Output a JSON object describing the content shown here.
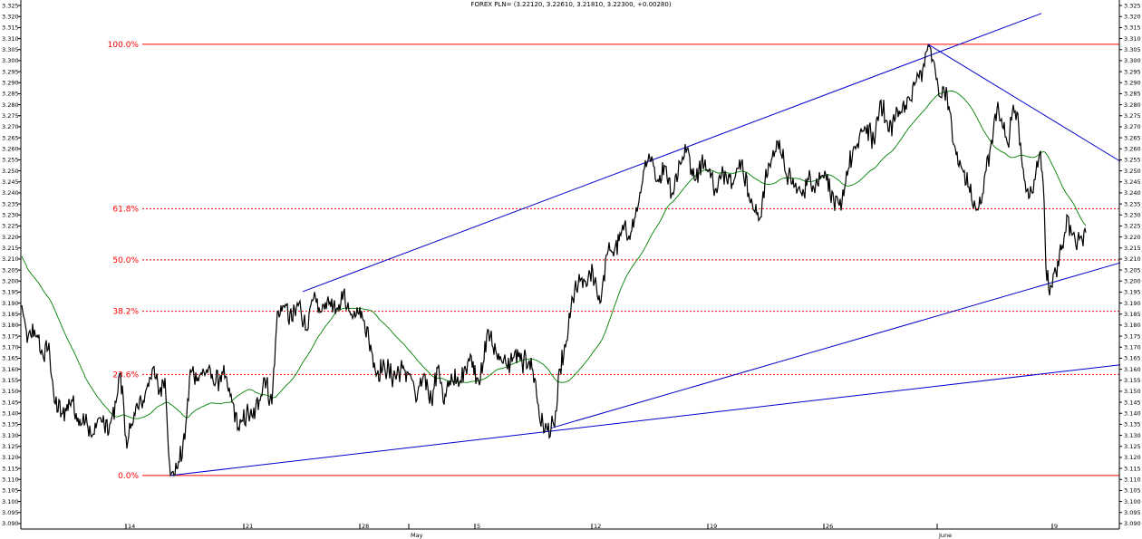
{
  "chart_data": {
    "type": "line",
    "title": "FOREX PLN= (3.22120, 3.22610, 3.21810, 3.22300, +0.00280)",
    "ylim": [
      3.0875,
      3.3275
    ],
    "y_ticks": [
      "3.090",
      "3.095",
      "3.100",
      "3.105",
      "3.110",
      "3.115",
      "3.120",
      "3.125",
      "3.130",
      "3.135",
      "3.140",
      "3.145",
      "3.150",
      "3.155",
      "3.160",
      "3.165",
      "3.170",
      "3.175",
      "3.180",
      "3.185",
      "3.190",
      "3.195",
      "3.200",
      "3.205",
      "3.210",
      "3.215",
      "3.220",
      "3.225",
      "3.230",
      "3.235",
      "3.240",
      "3.245",
      "3.250",
      "3.255",
      "3.260",
      "3.265",
      "3.270",
      "3.275",
      "3.280",
      "3.285",
      "3.290",
      "3.295",
      "3.300",
      "3.305",
      "3.310",
      "3.315",
      "3.320",
      "3.325"
    ],
    "x_ticks": [
      {
        "label": "14",
        "bar": 115
      },
      {
        "label": "21",
        "bar": 245
      },
      {
        "label": "28",
        "bar": 373
      },
      {
        "label": "May",
        "bar": 427
      },
      {
        "label": "5",
        "bar": 500
      },
      {
        "label": "12",
        "bar": 629
      },
      {
        "label": "19",
        "bar": 757
      },
      {
        "label": "26",
        "bar": 885
      },
      {
        "label": "June",
        "bar": 1010
      },
      {
        "label": "9",
        "bar": 1137
      }
    ],
    "xlim": [
      0,
      1210
    ],
    "fib_levels": [
      {
        "label": "100.0%",
        "value": 3.3074,
        "dashed": false
      },
      {
        "label": "61.8%",
        "value": 3.2328,
        "dashed": true
      },
      {
        "label": "50.0%",
        "value": 3.2096,
        "dashed": true
      },
      {
        "label": "38.2%",
        "value": 3.1863,
        "dashed": true
      },
      {
        "label": "23.6%",
        "value": 3.1576,
        "dashed": true
      },
      {
        "label": "0.0%",
        "value": 3.1118,
        "dashed": false
      }
    ],
    "trendlines": [
      {
        "name": "upper-channel",
        "from": [
          310,
          3.1952
        ],
        "to": [
          1125,
          3.3214
        ]
      },
      {
        "name": "resistance",
        "from": [
          1000,
          3.3074
        ],
        "to": [
          1212,
          3.2543
        ]
      },
      {
        "name": "support-mid",
        "from": [
          584,
          3.1333
        ],
        "to": [
          1212,
          3.2083
        ]
      },
      {
        "name": "support-low",
        "from": [
          164,
          3.1118
        ],
        "to": [
          1212,
          3.162
        ]
      }
    ],
    "price_anchors": [
      [
        0,
        3.189
      ],
      [
        6,
        3.172
      ],
      [
        14,
        3.178
      ],
      [
        24,
        3.165
      ],
      [
        30,
        3.172
      ],
      [
        36,
        3.145
      ],
      [
        45,
        3.14
      ],
      [
        55,
        3.146
      ],
      [
        62,
        3.138
      ],
      [
        70,
        3.136
      ],
      [
        78,
        3.13
      ],
      [
        86,
        3.138
      ],
      [
        96,
        3.131
      ],
      [
        104,
        3.145
      ],
      [
        108,
        3.158
      ],
      [
        112,
        3.147
      ],
      [
        116,
        3.124
      ],
      [
        124,
        3.14
      ],
      [
        134,
        3.146
      ],
      [
        144,
        3.16
      ],
      [
        152,
        3.15
      ],
      [
        158,
        3.156
      ],
      [
        164,
        3.112
      ],
      [
        172,
        3.115
      ],
      [
        180,
        3.128
      ],
      [
        186,
        3.16
      ],
      [
        194,
        3.156
      ],
      [
        204,
        3.16
      ],
      [
        214,
        3.154
      ],
      [
        222,
        3.158
      ],
      [
        232,
        3.145
      ],
      [
        240,
        3.132
      ],
      [
        248,
        3.14
      ],
      [
        255,
        3.138
      ],
      [
        262,
        3.146
      ],
      [
        268,
        3.156
      ],
      [
        276,
        3.144
      ],
      [
        282,
        3.186
      ],
      [
        290,
        3.188
      ],
      [
        298,
        3.182
      ],
      [
        306,
        3.19
      ],
      [
        314,
        3.178
      ],
      [
        322,
        3.192
      ],
      [
        330,
        3.186
      ],
      [
        338,
        3.193
      ],
      [
        346,
        3.185
      ],
      [
        355,
        3.195
      ],
      [
        362,
        3.186
      ],
      [
        370,
        3.188
      ],
      [
        378,
        3.182
      ],
      [
        386,
        3.168
      ],
      [
        392,
        3.158
      ],
      [
        400,
        3.162
      ],
      [
        410,
        3.156
      ],
      [
        418,
        3.16
      ],
      [
        428,
        3.158
      ],
      [
        436,
        3.146
      ],
      [
        444,
        3.158
      ],
      [
        452,
        3.146
      ],
      [
        460,
        3.162
      ],
      [
        466,
        3.144
      ],
      [
        474,
        3.158
      ],
      [
        482,
        3.152
      ],
      [
        488,
        3.16
      ],
      [
        496,
        3.166
      ],
      [
        502,
        3.156
      ],
      [
        508,
        3.158
      ],
      [
        514,
        3.178
      ],
      [
        520,
        3.17
      ],
      [
        528,
        3.166
      ],
      [
        536,
        3.16
      ],
      [
        544,
        3.168
      ],
      [
        552,
        3.163
      ],
      [
        560,
        3.164
      ],
      [
        566,
        3.156
      ],
      [
        572,
        3.136
      ],
      [
        580,
        3.132
      ],
      [
        588,
        3.134
      ],
      [
        594,
        3.16
      ],
      [
        600,
        3.17
      ],
      [
        608,
        3.192
      ],
      [
        616,
        3.2
      ],
      [
        624,
        3.198
      ],
      [
        630,
        3.205
      ],
      [
        638,
        3.19
      ],
      [
        646,
        3.212
      ],
      [
        654,
        3.214
      ],
      [
        664,
        3.223
      ],
      [
        672,
        3.222
      ],
      [
        680,
        3.234
      ],
      [
        686,
        3.25
      ],
      [
        694,
        3.254
      ],
      [
        702,
        3.246
      ],
      [
        710,
        3.252
      ],
      [
        718,
        3.24
      ],
      [
        726,
        3.254
      ],
      [
        734,
        3.26
      ],
      [
        742,
        3.246
      ],
      [
        750,
        3.254
      ],
      [
        758,
        3.25
      ],
      [
        766,
        3.242
      ],
      [
        776,
        3.25
      ],
      [
        786,
        3.246
      ],
      [
        794,
        3.254
      ],
      [
        802,
        3.24
      ],
      [
        808,
        3.232
      ],
      [
        814,
        3.228
      ],
      [
        820,
        3.245
      ],
      [
        828,
        3.256
      ],
      [
        836,
        3.264
      ],
      [
        842,
        3.25
      ],
      [
        850,
        3.244
      ],
      [
        860,
        3.24
      ],
      [
        868,
        3.246
      ],
      [
        876,
        3.244
      ],
      [
        886,
        3.25
      ],
      [
        896,
        3.236
      ],
      [
        904,
        3.232
      ],
      [
        910,
        3.25
      ],
      [
        920,
        3.26
      ],
      [
        930,
        3.27
      ],
      [
        940,
        3.264
      ],
      [
        948,
        3.282
      ],
      [
        956,
        3.268
      ],
      [
        964,
        3.274
      ],
      [
        972,
        3.28
      ],
      [
        980,
        3.282
      ],
      [
        986,
        3.29
      ],
      [
        994,
        3.296
      ],
      [
        1000,
        3.307
      ],
      [
        1006,
        3.3
      ],
      [
        1012,
        3.284
      ],
      [
        1020,
        3.288
      ],
      [
        1028,
        3.262
      ],
      [
        1034,
        3.252
      ],
      [
        1040,
        3.25
      ],
      [
        1046,
        3.24
      ],
      [
        1052,
        3.234
      ],
      [
        1058,
        3.235
      ],
      [
        1064,
        3.25
      ],
      [
        1070,
        3.264
      ],
      [
        1076,
        3.278
      ],
      [
        1082,
        3.27
      ],
      [
        1088,
        3.262
      ],
      [
        1094,
        3.28
      ],
      [
        1100,
        3.27
      ],
      [
        1106,
        3.246
      ],
      [
        1112,
        3.238
      ],
      [
        1118,
        3.246
      ],
      [
        1123,
        3.258
      ],
      [
        1127,
        3.244
      ],
      [
        1131,
        3.2
      ],
      [
        1135,
        3.198
      ],
      [
        1141,
        3.204
      ],
      [
        1147,
        3.214
      ],
      [
        1153,
        3.23
      ],
      [
        1158,
        3.222
      ],
      [
        1163,
        3.216
      ],
      [
        1168,
        3.22
      ],
      [
        1174,
        3.222
      ]
    ],
    "series": [
      {
        "name": "",
        "color": "#000000",
        "kind": "price"
      },
      {
        "name": "",
        "color": "#008000",
        "kind": "moving-average"
      }
    ],
    "grid": false,
    "legend": "none"
  }
}
